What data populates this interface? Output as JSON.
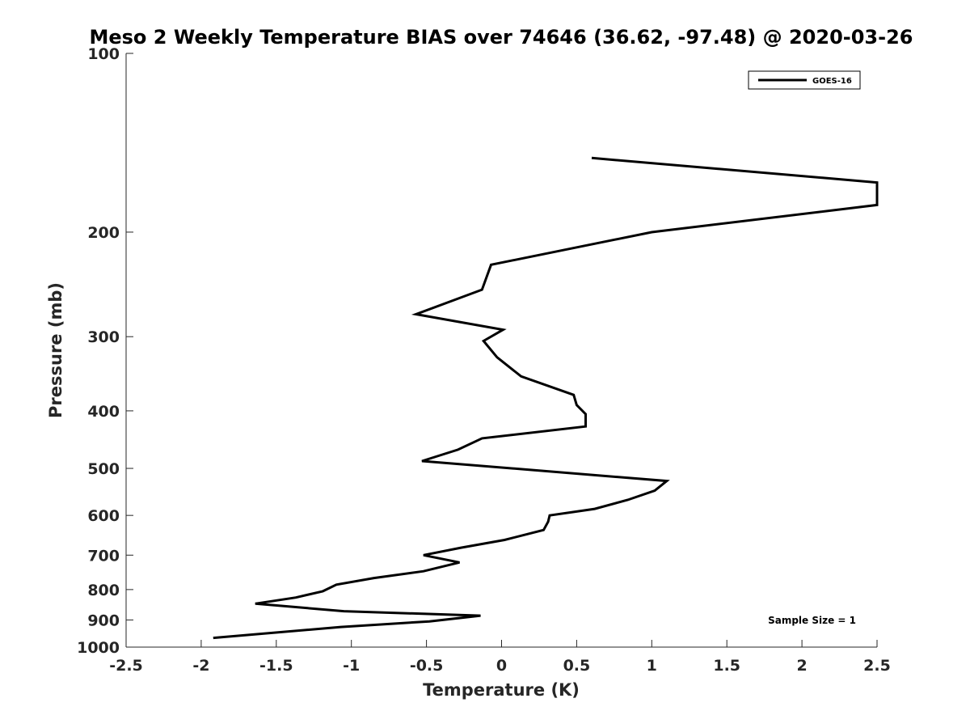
{
  "chart_data": {
    "type": "line",
    "title": "Meso 2 Weekly Temperature BIAS over 74646 (36.62, -97.48) @ 2020-03-26",
    "xlabel": "Temperature (K)",
    "ylabel": "Pressure (mb)",
    "xlim": [
      -2.5,
      2.5
    ],
    "ylim": [
      100,
      1000
    ],
    "yscale": "log",
    "y_reversed": true,
    "xticks": [
      -2.5,
      -2,
      -1.5,
      -1,
      -0.5,
      0,
      0.5,
      1,
      1.5,
      2,
      2.5
    ],
    "xtick_labels": [
      "-2.5",
      "-2",
      "-1.5",
      "-1",
      "-0.5",
      "0",
      "0.5",
      "1",
      "1.5",
      "2",
      "2.5"
    ],
    "yticks": [
      100,
      200,
      300,
      400,
      500,
      600,
      700,
      800,
      900,
      1000
    ],
    "ytick_labels": [
      "100",
      "200",
      "300",
      "400",
      "500",
      "600",
      "700",
      "800",
      "900",
      "1000"
    ],
    "grid": false,
    "legend_position": "top-right",
    "series": [
      {
        "name": "GOES-16",
        "color": "#000000",
        "points": [
          [
            0.6,
            150
          ],
          [
            2.5,
            165
          ],
          [
            2.5,
            180
          ],
          [
            1.0,
            200
          ],
          [
            -0.07,
            227
          ],
          [
            -0.13,
            250
          ],
          [
            -0.57,
            275
          ],
          [
            0.01,
            292
          ],
          [
            -0.12,
            305
          ],
          [
            -0.03,
            325
          ],
          [
            0.13,
            350
          ],
          [
            0.48,
            376
          ],
          [
            0.5,
            391
          ],
          [
            0.56,
            405
          ],
          [
            0.56,
            425
          ],
          [
            -0.13,
            445
          ],
          [
            -0.29,
            465
          ],
          [
            -0.53,
            486
          ],
          [
            1.1,
            525
          ],
          [
            1.02,
            545
          ],
          [
            0.84,
            565
          ],
          [
            0.62,
            585
          ],
          [
            0.32,
            600
          ],
          [
            0.31,
            615
          ],
          [
            0.28,
            635
          ],
          [
            0.02,
            660
          ],
          [
            -0.27,
            680
          ],
          [
            -0.52,
            700
          ],
          [
            -0.28,
            720
          ],
          [
            -0.52,
            745
          ],
          [
            -0.85,
            765
          ],
          [
            -1.1,
            785
          ],
          [
            -1.19,
            805
          ],
          [
            -1.37,
            825
          ],
          [
            -1.64,
            845
          ],
          [
            -1.05,
            870
          ],
          [
            -0.14,
            885
          ],
          [
            -0.48,
            905
          ],
          [
            -1.07,
            925
          ],
          [
            -1.92,
            965
          ]
        ]
      }
    ],
    "annotations": [
      "Sample Size = 1"
    ]
  }
}
